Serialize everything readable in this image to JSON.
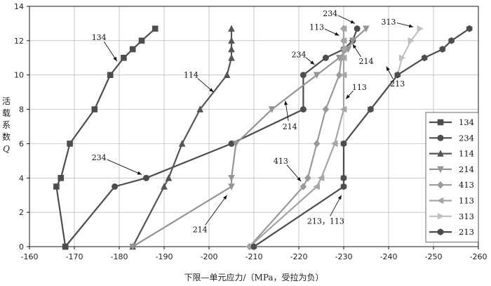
{
  "chart_data": {
    "type": "line",
    "xlabel": "下限—单元应力/（MPa，受拉为负）",
    "ylabel": [
      "活",
      "载",
      "系",
      "数",
      "Q"
    ],
    "xlim": [
      -160,
      -260
    ],
    "ylim": [
      0,
      14
    ],
    "xticks": [
      -160,
      -170,
      -180,
      -190,
      -200,
      -210,
      -220,
      -230,
      -240,
      -250,
      -260
    ],
    "yticks": [
      0,
      2,
      4,
      6,
      8,
      10,
      12,
      14
    ],
    "grid": true,
    "legend_position": "right",
    "series": [
      {
        "name": "134",
        "marker": "square",
        "color": "#4d4d4d",
        "points": [
          [
            -168,
            0
          ],
          [
            -166,
            3.5
          ],
          [
            -167,
            4
          ],
          [
            -169,
            6
          ],
          [
            -174.5,
            8
          ],
          [
            -178,
            10
          ],
          [
            -181,
            11
          ],
          [
            -183,
            11.5
          ],
          [
            -185,
            12
          ],
          [
            -188,
            12.7
          ]
        ]
      },
      {
        "name": "234",
        "marker": "circle",
        "color": "#4d4d4d",
        "points": [
          [
            -168,
            0
          ],
          [
            -179,
            3.5
          ],
          [
            -186,
            4
          ],
          [
            -205,
            6
          ],
          [
            -221,
            8
          ],
          [
            -221,
            10
          ],
          [
            -226,
            11
          ],
          [
            -230,
            11.5
          ],
          [
            -232,
            12
          ],
          [
            -233,
            12.7
          ]
        ]
      },
      {
        "name": "114",
        "marker": "triangle-up",
        "color": "#555555",
        "points": [
          [
            -183,
            0
          ],
          [
            -190,
            3.5
          ],
          [
            -191,
            4
          ],
          [
            -194,
            6
          ],
          [
            -198,
            8
          ],
          [
            -204,
            10
          ],
          [
            -205,
            11
          ],
          [
            -205,
            11.5
          ],
          [
            -205,
            12
          ],
          [
            -205,
            12.7
          ]
        ]
      },
      {
        "name": "214",
        "marker": "triangle-down",
        "color": "#959595",
        "points": [
          [
            -183,
            0
          ],
          [
            -205,
            3.5
          ],
          [
            -205,
            4
          ],
          [
            -206,
            6
          ],
          [
            -214,
            8
          ],
          [
            -224,
            10
          ],
          [
            -229,
            11
          ],
          [
            -231,
            11.5
          ],
          [
            -232,
            12
          ],
          [
            -235,
            12.7
          ]
        ]
      },
      {
        "name": "413",
        "marker": "diamond",
        "color": "#9a9a9a",
        "points": [
          [
            -209,
            0
          ],
          [
            -221,
            3.5
          ],
          [
            -222,
            4
          ],
          [
            -224,
            6
          ],
          [
            -226,
            8
          ],
          [
            -229,
            10
          ],
          [
            -229.5,
            11
          ],
          [
            -230,
            11.5
          ],
          [
            -230,
            12
          ],
          [
            -230,
            12.7
          ]
        ]
      },
      {
        "name": "113",
        "marker": "triangle-left",
        "color": "#a5a5a5",
        "points": [
          [
            -209,
            0
          ],
          [
            -224,
            3.5
          ],
          [
            -225,
            4
          ],
          [
            -228,
            6
          ],
          [
            -230,
            8
          ],
          [
            -230,
            10
          ],
          [
            -230,
            11
          ],
          [
            -230,
            11.5
          ],
          [
            -230,
            12
          ],
          [
            -230,
            12.7
          ]
        ]
      },
      {
        "name": "313",
        "marker": "triangle-right",
        "color": "#c0c0c0",
        "points": [
          [
            -210,
            0
          ],
          [
            -230,
            3.5
          ],
          [
            -230,
            4
          ],
          [
            -230,
            6
          ],
          [
            -236,
            8
          ],
          [
            -242,
            10
          ],
          [
            -243,
            11
          ],
          [
            -245,
            12
          ],
          [
            -247,
            12.7
          ]
        ]
      },
      {
        "name": "213",
        "marker": "hexagon",
        "color": "#4d4d4d",
        "points": [
          [
            -210,
            0
          ],
          [
            -230,
            3.5
          ],
          [
            -230,
            4
          ],
          [
            -230,
            6
          ],
          [
            -236,
            8
          ],
          [
            -242,
            10
          ],
          [
            -248,
            11
          ],
          [
            -252,
            11.5
          ],
          [
            -254,
            12
          ],
          [
            -258,
            12.7
          ]
        ]
      }
    ],
    "annotations": [
      {
        "text": "134",
        "at": [
          -175.5,
          12.2
        ],
        "arrow_to": [
          -179.5,
          10.8
        ]
      },
      {
        "text": "114",
        "at": [
          -196,
          10.0
        ],
        "arrow_to": [
          -201,
          9.0
        ]
      },
      {
        "text": "234",
        "at": [
          -175.5,
          5.2
        ],
        "arrow_to": [
          -185,
          4.2
        ]
      },
      {
        "text": "214",
        "at": [
          -198,
          1.0
        ],
        "arrow_to": [
          -204,
          3.0
        ]
      },
      {
        "text": "234",
        "at": [
          -220,
          11.2
        ],
        "arrow_to": [
          -223.5,
          10.6
        ]
      },
      {
        "text": "214",
        "at": [
          -218,
          7.0
        ],
        "arrow_to": [
          -217,
          8.5
        ]
      },
      {
        "text": "113",
        "at": [
          -224,
          12.8
        ],
        "arrow_to": [
          -229,
          12.3
        ]
      },
      {
        "text": "234",
        "at": [
          -227,
          13.6
        ],
        "arrow_to": [
          -232.5,
          13.0
        ]
      },
      {
        "text": "214",
        "at": [
          -235,
          10.8
        ],
        "arrow_to": [
          -232,
          11.8
        ]
      },
      {
        "text": "313",
        "at": [
          -240,
          13.1
        ],
        "arrow_to": [
          -245.5,
          12.8
        ]
      },
      {
        "text": "113",
        "at": [
          -233.5,
          9.3
        ],
        "arrow_to": [
          -230.5,
          8.6
        ]
      },
      {
        "text": "213",
        "at": [
          -242,
          9.5
        ],
        "arrow_to": [
          -239.5,
          10.5
        ]
      },
      {
        "text": "413",
        "at": [
          -216,
          5.0
        ],
        "arrow_to": [
          -220.5,
          3.8
        ]
      },
      {
        "text": "213，113",
        "at": [
          -226,
          1.5
        ],
        "arrow_to": [
          -229.5,
          3.0
        ]
      }
    ]
  }
}
